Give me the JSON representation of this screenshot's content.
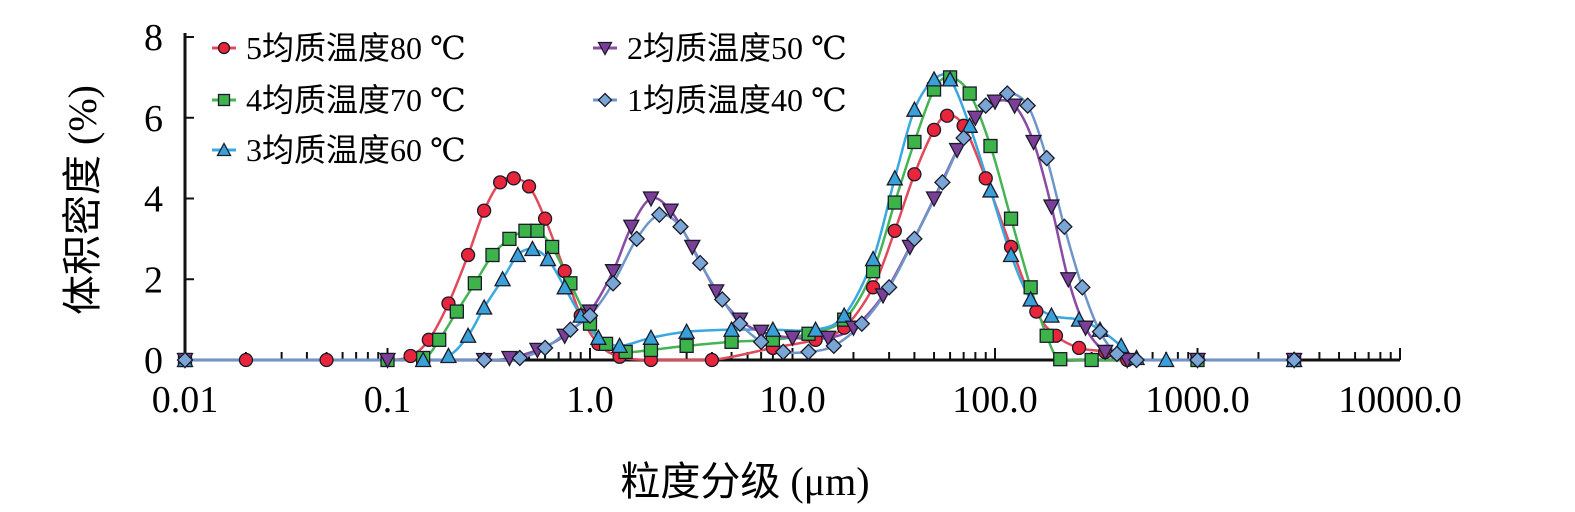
{
  "chart_data": {
    "type": "line",
    "title": "",
    "xlabel": "粒度分级 (μm)",
    "ylabel": "体积密度 (%)",
    "xscale": "log",
    "xlim": [
      0.01,
      10000
    ],
    "ylim": [
      0,
      8
    ],
    "xticks": [
      0.01,
      0.1,
      1,
      10,
      100,
      1000,
      10000
    ],
    "xtick_labels": [
      "0.01",
      "0.1",
      "1.0",
      "10.0",
      "100.0",
      "1000.0",
      "10000.0"
    ],
    "yticks": [
      0,
      2,
      4,
      6,
      8
    ],
    "ytick_labels": [
      "0",
      "2",
      "4",
      "6",
      "8"
    ],
    "grid": false,
    "legend_placement": "top-left",
    "series": [
      {
        "name": "5均质温度80 ℃",
        "marker": "circle",
        "color": "#e8253a",
        "line_color": "#e04a5a",
        "points": [
          [
            0.01,
            0
          ],
          [
            0.02,
            0
          ],
          [
            0.05,
            0
          ],
          [
            0.1,
            0
          ],
          [
            0.13,
            0.1
          ],
          [
            0.16,
            0.5
          ],
          [
            0.2,
            1.4
          ],
          [
            0.25,
            2.6
          ],
          [
            0.3,
            3.7
          ],
          [
            0.36,
            4.4
          ],
          [
            0.42,
            4.5
          ],
          [
            0.5,
            4.3
          ],
          [
            0.6,
            3.5
          ],
          [
            0.75,
            2.2
          ],
          [
            0.9,
            1.1
          ],
          [
            1.1,
            0.4
          ],
          [
            1.4,
            0.08
          ],
          [
            2,
            0
          ],
          [
            4,
            0
          ],
          [
            8,
            0.3
          ],
          [
            13,
            0.5
          ],
          [
            18,
            0.8
          ],
          [
            25,
            1.8
          ],
          [
            32,
            3.2
          ],
          [
            40,
            4.6
          ],
          [
            50,
            5.7
          ],
          [
            58,
            6.05
          ],
          [
            70,
            5.8
          ],
          [
            90,
            4.5
          ],
          [
            120,
            2.8
          ],
          [
            160,
            1.2
          ],
          [
            200,
            0.6
          ],
          [
            260,
            0.3
          ],
          [
            350,
            0.2
          ],
          [
            450,
            0
          ],
          [
            1000,
            0
          ],
          [
            3000,
            0
          ]
        ]
      },
      {
        "name": "4均质温度70 ℃",
        "marker": "square",
        "color": "#3cb44a",
        "line_color": "#46b455",
        "points": [
          [
            0.01,
            0
          ],
          [
            0.1,
            0
          ],
          [
            0.15,
            0.05
          ],
          [
            0.18,
            0.5
          ],
          [
            0.22,
            1.2
          ],
          [
            0.27,
            1.9
          ],
          [
            0.33,
            2.6
          ],
          [
            0.4,
            3.0
          ],
          [
            0.48,
            3.2
          ],
          [
            0.55,
            3.2
          ],
          [
            0.65,
            2.8
          ],
          [
            0.8,
            1.9
          ],
          [
            1.0,
            0.9
          ],
          [
            1.2,
            0.4
          ],
          [
            1.5,
            0.2
          ],
          [
            2,
            0.25
          ],
          [
            3,
            0.35
          ],
          [
            5,
            0.45
          ],
          [
            8,
            0.5
          ],
          [
            12,
            0.65
          ],
          [
            18,
            1.0
          ],
          [
            25,
            2.2
          ],
          [
            32,
            3.9
          ],
          [
            40,
            5.4
          ],
          [
            50,
            6.7
          ],
          [
            60,
            7.0
          ],
          [
            75,
            6.6
          ],
          [
            95,
            5.3
          ],
          [
            120,
            3.5
          ],
          [
            150,
            1.8
          ],
          [
            180,
            0.6
          ],
          [
            210,
            0.02
          ],
          [
            300,
            0
          ],
          [
            1000,
            0
          ],
          [
            3000,
            0
          ]
        ]
      },
      {
        "name": "3均质温度60 ℃",
        "marker": "triangle-up",
        "color": "#3aa0d8",
        "line_color": "#3aa8e0",
        "points": [
          [
            0.01,
            0
          ],
          [
            0.15,
            0
          ],
          [
            0.2,
            0.1
          ],
          [
            0.25,
            0.6
          ],
          [
            0.3,
            1.3
          ],
          [
            0.37,
            2.0
          ],
          [
            0.44,
            2.6
          ],
          [
            0.52,
            2.75
          ],
          [
            0.62,
            2.5
          ],
          [
            0.75,
            1.8
          ],
          [
            0.9,
            1.1
          ],
          [
            1.1,
            0.55
          ],
          [
            1.4,
            0.35
          ],
          [
            2,
            0.55
          ],
          [
            3,
            0.7
          ],
          [
            5,
            0.75
          ],
          [
            8,
            0.75
          ],
          [
            13,
            0.75
          ],
          [
            18,
            1.1
          ],
          [
            25,
            2.5
          ],
          [
            32,
            4.5
          ],
          [
            40,
            6.2
          ],
          [
            50,
            6.95
          ],
          [
            60,
            6.95
          ],
          [
            75,
            5.8
          ],
          [
            95,
            4.2
          ],
          [
            120,
            2.6
          ],
          [
            150,
            1.5
          ],
          [
            190,
            1.1
          ],
          [
            260,
            1.0
          ],
          [
            330,
            0.75
          ],
          [
            420,
            0.35
          ],
          [
            500,
            0.05
          ],
          [
            700,
            0
          ],
          [
            3000,
            0
          ]
        ]
      },
      {
        "name": "2均质温度50 ℃",
        "marker": "triangle-down",
        "color": "#7b3f98",
        "line_color": "#8a4aa6",
        "points": [
          [
            0.01,
            0
          ],
          [
            0.1,
            0
          ],
          [
            0.3,
            0
          ],
          [
            0.4,
            0.05
          ],
          [
            0.55,
            0.25
          ],
          [
            0.75,
            0.6
          ],
          [
            1.0,
            1.2
          ],
          [
            1.3,
            2.2
          ],
          [
            1.6,
            3.3
          ],
          [
            2.0,
            4.0
          ],
          [
            2.5,
            3.7
          ],
          [
            3.2,
            2.8
          ],
          [
            4.2,
            1.7
          ],
          [
            5.5,
            1.0
          ],
          [
            7,
            0.7
          ],
          [
            10,
            0.55
          ],
          [
            15,
            0.55
          ],
          [
            20,
            0.8
          ],
          [
            28,
            1.6
          ],
          [
            38,
            2.8
          ],
          [
            50,
            4.0
          ],
          [
            65,
            5.2
          ],
          [
            80,
            6.0
          ],
          [
            100,
            6.4
          ],
          [
            125,
            6.3
          ],
          [
            155,
            5.4
          ],
          [
            190,
            3.8
          ],
          [
            230,
            2.0
          ],
          [
            280,
            0.8
          ],
          [
            350,
            0.2
          ],
          [
            450,
            0
          ],
          [
            1000,
            0
          ],
          [
            3000,
            0
          ]
        ]
      },
      {
        "name": "1均质温度40 ℃",
        "marker": "diamond",
        "color": "#7aa6d6",
        "line_color": "#6f96c8",
        "points": [
          [
            0.01,
            0
          ],
          [
            0.3,
            0
          ],
          [
            0.45,
            0.05
          ],
          [
            0.6,
            0.3
          ],
          [
            0.8,
            0.75
          ],
          [
            1.0,
            1.1
          ],
          [
            1.3,
            1.9
          ],
          [
            1.7,
            3.0
          ],
          [
            2.2,
            3.6
          ],
          [
            2.8,
            3.3
          ],
          [
            3.5,
            2.4
          ],
          [
            4.5,
            1.5
          ],
          [
            5.5,
            0.9
          ],
          [
            7,
            0.45
          ],
          [
            9,
            0.2
          ],
          [
            12,
            0.2
          ],
          [
            16,
            0.35
          ],
          [
            22,
            0.9
          ],
          [
            30,
            1.8
          ],
          [
            40,
            3.0
          ],
          [
            55,
            4.4
          ],
          [
            70,
            5.5
          ],
          [
            90,
            6.3
          ],
          [
            115,
            6.6
          ],
          [
            145,
            6.3
          ],
          [
            180,
            5.0
          ],
          [
            220,
            3.3
          ],
          [
            270,
            1.8
          ],
          [
            330,
            0.7
          ],
          [
            400,
            0.15
          ],
          [
            500,
            0
          ],
          [
            1000,
            0
          ],
          [
            3000,
            0
          ]
        ]
      }
    ]
  }
}
